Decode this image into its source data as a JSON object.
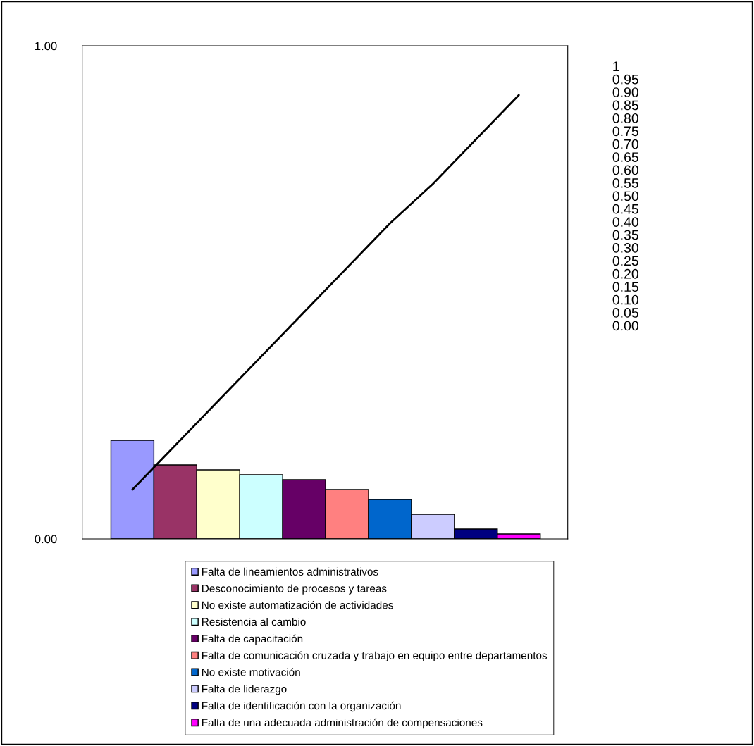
{
  "chart_data": {
    "type": "bar",
    "categories": [
      null,
      null,
      null,
      null,
      null,
      null,
      null,
      null,
      null,
      null
    ],
    "series": [
      {
        "name": "Falta de lineamientos administrativos",
        "color": "#9999ff",
        "values": [
          0.2,
          null,
          null,
          null,
          null,
          null,
          null,
          null,
          null,
          null
        ]
      },
      {
        "name": "Desconocimiento de procesos y tareas",
        "color": "#993366",
        "values": [
          null,
          0.15,
          null,
          null,
          null,
          null,
          null,
          null,
          null,
          null
        ]
      },
      {
        "name": "No existe automatización de actividades",
        "color": "#ffffcc",
        "values": [
          null,
          null,
          0.14,
          null,
          null,
          null,
          null,
          null,
          null,
          null
        ]
      },
      {
        "name": "Resistencia al cambio",
        "color": "#ccffff",
        "values": [
          null,
          null,
          null,
          0.13,
          null,
          null,
          null,
          null,
          null,
          null
        ]
      },
      {
        "name": "Falta de capacitación",
        "color": "#660066",
        "values": [
          null,
          null,
          null,
          null,
          0.12,
          null,
          null,
          null,
          null,
          null
        ]
      },
      {
        "name": "Falta de comunicación cruzada y trabajo en equipo entre departamentos",
        "color": "#ff8080",
        "values": [
          null,
          null,
          null,
          null,
          null,
          0.1,
          null,
          null,
          null,
          null
        ]
      },
      {
        "name": "No existe motivación",
        "color": "#0066cc",
        "values": [
          null,
          null,
          null,
          null,
          null,
          null,
          0.08,
          null,
          null,
          null
        ]
      },
      {
        "name": "Falta de liderazgo",
        "color": "#ccccff",
        "values": [
          null,
          null,
          null,
          null,
          null,
          null,
          null,
          0.05,
          null,
          null
        ]
      },
      {
        "name": "Falta de identificación con la organización",
        "color": "#000080",
        "values": [
          null,
          null,
          null,
          null,
          null,
          null,
          null,
          null,
          0.02,
          null
        ]
      },
      {
        "name": "Falta de una adecuada administración de compensaciones",
        "color": "#ff00ff",
        "values": [
          null,
          null,
          null,
          null,
          null,
          null,
          null,
          null,
          null,
          0.01
        ]
      },
      {
        "type": "line",
        "color": "#000000",
        "values": [
          0.1,
          0.19,
          0.28,
          0.37,
          0.46,
          0.55,
          0.64,
          0.72,
          0.81,
          0.9
        ]
      }
    ],
    "ylim": [
      0,
      1
    ],
    "yticks": [
      {
        "value": 0,
        "label": "0.00"
      },
      {
        "value": 1,
        "label": "1.00"
      }
    ],
    "tick_labels": "y",
    "grid": false,
    "legend": "bottom",
    "annotations": [
      "1\n0.95\n0.90\n0.85\n0.80\n0.75\n0.70\n0.65\n0.60\n0.55\n0.50\n0.45\n0.40\n0.35\n0.30\n0.25\n0.20\n0.15\n0.10\n0.05\n0.00"
    ]
  }
}
